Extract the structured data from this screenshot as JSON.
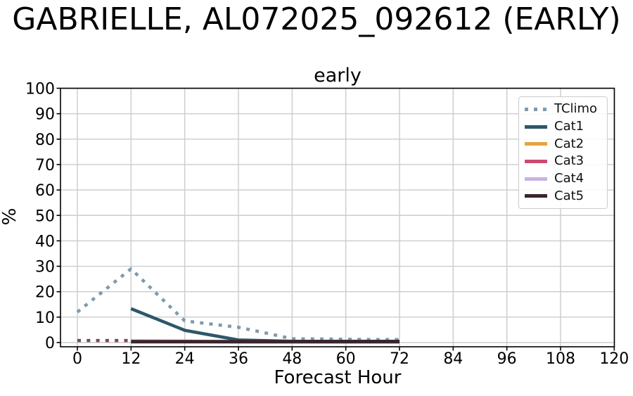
{
  "suptitle": "GABRIELLE, AL072025_092612 (EARLY)",
  "chart_data": {
    "type": "line",
    "title": "early",
    "xlabel": "Forecast Hour",
    "ylabel": "%",
    "x_ticks": [
      0,
      12,
      24,
      36,
      48,
      60,
      72,
      84,
      96,
      108,
      120
    ],
    "y_ticks": [
      0,
      10,
      20,
      30,
      40,
      50,
      60,
      70,
      80,
      90,
      100
    ],
    "xlim": [
      -4,
      120
    ],
    "ylim": [
      -1.7,
      100
    ],
    "grid": true,
    "grid_color": "#cccccc",
    "spine_color": "#000000",
    "legend_position": "upper right",
    "series": [
      {
        "name": "TClimo",
        "label": "TClimo",
        "color": "#7f9aab",
        "style": "dotted",
        "width": 4.5,
        "x": [
          0,
          12,
          24,
          36,
          42,
          48,
          54,
          60,
          66,
          72
        ],
        "values": [
          12,
          29,
          8.5,
          6,
          3.8,
          1.5,
          1.4,
          1.3,
          1.2,
          1.2
        ]
      },
      {
        "name": "TClimo-minor-cats",
        "label": "",
        "color": "#7b4a55",
        "style": "dotted",
        "width": 4.5,
        "x": [
          0,
          12
        ],
        "values": [
          0.8,
          0.8
        ]
      },
      {
        "name": "Cat1",
        "label": "Cat1",
        "color": "#2e5769",
        "style": "solid",
        "width": 4.5,
        "x": [
          12,
          24,
          36,
          48,
          60,
          72
        ],
        "values": [
          13.3,
          4.8,
          1.0,
          0.5,
          0.5,
          0.5
        ]
      },
      {
        "name": "Cat2",
        "label": "Cat2",
        "color": "#e7a33e",
        "style": "solid",
        "width": 4,
        "x": [
          12,
          24,
          36,
          48,
          60,
          72
        ],
        "values": [
          0.7,
          0.6,
          0.3,
          0.3,
          0.3,
          0.3
        ]
      },
      {
        "name": "Cat3",
        "label": "Cat3",
        "color": "#cb4b70",
        "style": "solid",
        "width": 4,
        "x": [
          12,
          24,
          36,
          48,
          60,
          72
        ],
        "values": [
          0.3,
          0.3,
          0.2,
          0.2,
          0.2,
          0.2
        ]
      },
      {
        "name": "Cat4",
        "label": "Cat4",
        "color": "#c9b2e1",
        "style": "solid",
        "width": 4,
        "x": [
          12,
          24,
          36,
          48,
          60,
          72
        ],
        "values": [
          0.3,
          0.3,
          0.2,
          0.2,
          0.2,
          0.2
        ]
      },
      {
        "name": "Cat5",
        "label": "Cat5",
        "color": "#3a242f",
        "style": "solid",
        "width": 5,
        "x": [
          12,
          24,
          36,
          48,
          60,
          72
        ],
        "values": [
          0.35,
          0.35,
          0.35,
          0.35,
          0.35,
          0.35
        ]
      }
    ],
    "legend": [
      {
        "label": "TClimo",
        "color": "#7f9aab",
        "dotted": true
      },
      {
        "label": "Cat1",
        "color": "#2e5769",
        "dotted": false
      },
      {
        "label": "Cat2",
        "color": "#e7a33e",
        "dotted": false
      },
      {
        "label": "Cat3",
        "color": "#cb4b70",
        "dotted": false
      },
      {
        "label": "Cat4",
        "color": "#c9b2e1",
        "dotted": false
      },
      {
        "label": "Cat5",
        "color": "#3a242f",
        "dotted": false
      }
    ]
  }
}
